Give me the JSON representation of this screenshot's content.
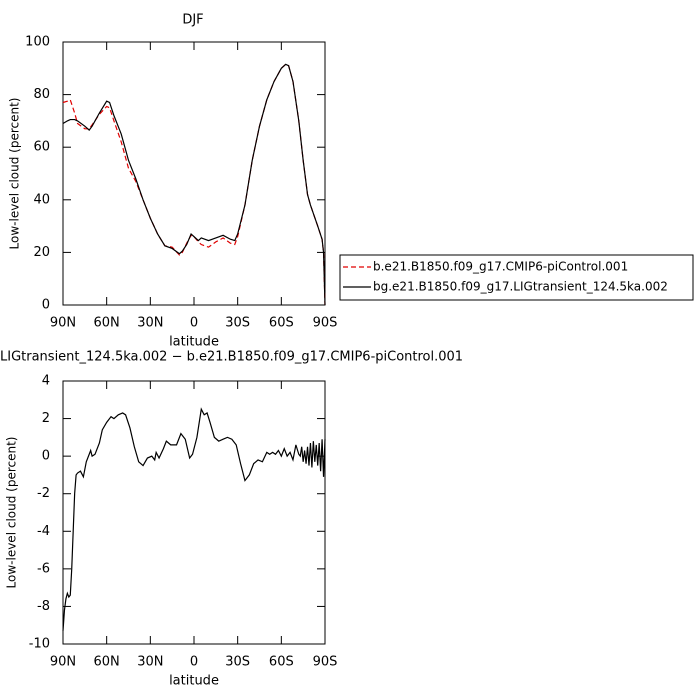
{
  "chart_data": [
    {
      "type": "line",
      "title": "DJF",
      "xlabel": "latitude",
      "ylabel": "Low-level cloud (percent)",
      "x": [
        90,
        87,
        85,
        82,
        80,
        75,
        72,
        70,
        65,
        60,
        58,
        55,
        50,
        45,
        40,
        35,
        30,
        25,
        20,
        15,
        10,
        8,
        5,
        2,
        0,
        -3,
        -5,
        -10,
        -15,
        -20,
        -25,
        -28,
        -30,
        -35,
        -40,
        -45,
        -50,
        -55,
        -60,
        -63,
        -65,
        -68,
        -72,
        -75,
        -78,
        -80,
        -85,
        -88,
        -89,
        -90
      ],
      "series": [
        {
          "name": "b.e21.B1850.f09_g17.CMIP6-piControl.001",
          "color": "#e00000",
          "dashed": true,
          "values": [
            77,
            77.5,
            78,
            73,
            69,
            67,
            67,
            68.5,
            72.5,
            75.5,
            75,
            70,
            62,
            52,
            47,
            40,
            33,
            27,
            22.5,
            22,
            19,
            20,
            23.5,
            26.5,
            26,
            24,
            23,
            22,
            24,
            25.5,
            23.5,
            23,
            26,
            38,
            55,
            68,
            78,
            85,
            90,
            91.5,
            91,
            85,
            70,
            55,
            42,
            38,
            30,
            25,
            20,
            0
          ]
        },
        {
          "name": "bg.e21.B1850.f09_g17.LIGtransient_124.5ka.002",
          "color": "#000000",
          "dashed": false,
          "values": [
            69,
            70,
            70.5,
            70.5,
            70,
            68,
            66.5,
            68,
            73,
            77.5,
            77,
            72,
            65,
            55,
            48,
            40,
            33,
            27,
            22.5,
            21.5,
            19.5,
            20.5,
            23,
            27,
            26,
            24.5,
            25.5,
            24.5,
            25.5,
            26.5,
            25,
            24.5,
            27,
            38,
            55,
            68,
            78,
            85,
            90,
            91.5,
            91,
            85,
            70,
            55,
            42,
            38,
            30,
            25,
            20,
            0
          ]
        }
      ],
      "xlim": [
        90,
        -90
      ],
      "xticks": [
        {
          "value": 90,
          "label": "90N"
        },
        {
          "value": 60,
          "label": "60N"
        },
        {
          "value": 30,
          "label": "30N"
        },
        0,
        {
          "value": -30,
          "label": "30S"
        },
        {
          "value": -60,
          "label": "60S"
        },
        {
          "value": -90,
          "label": "90S"
        }
      ],
      "ylim": [
        0,
        100
      ],
      "yticks": [
        0,
        20,
        40,
        60,
        80,
        100
      ],
      "legend": "right"
    },
    {
      "type": "line",
      "title": "LIGtransient_124.5ka.002 − b.e21.B1850.f09_g17.CMIP6-piControl.001",
      "xlabel": "latitude",
      "ylabel": "Low-level cloud (percent)",
      "x": [
        90,
        89,
        88,
        87,
        86,
        85,
        84,
        83,
        82,
        81,
        80,
        78,
        76,
        74,
        71,
        70,
        68,
        65,
        63,
        60,
        57,
        55,
        52,
        49,
        47,
        44,
        41,
        38,
        35,
        32,
        29,
        27,
        26,
        24,
        21,
        19,
        16,
        12,
        9,
        6,
        3,
        1,
        -2,
        -5,
        -7,
        -9,
        -11,
        -14,
        -17,
        -20,
        -23,
        -26,
        -29,
        -32,
        -35,
        -38,
        -41,
        -44,
        -47,
        -50,
        -52,
        -54,
        -56,
        -58,
        -60,
        -62,
        -64,
        -66,
        -68,
        -70,
        -72,
        -73,
        -74,
        -75,
        -76,
        -77,
        -78,
        -79,
        -80,
        -81,
        -82,
        -83,
        -84,
        -85,
        -86,
        -87,
        -88,
        -89,
        -90
      ],
      "series": [
        {
          "color": "#000000",
          "dashed": false,
          "values": [
            -9.3,
            -8.2,
            -7.6,
            -7.3,
            -7.5,
            -7.4,
            -6,
            -4,
            -2,
            -1,
            -0.9,
            -0.8,
            -1.1,
            -0.3,
            0.3,
            0,
            0.1,
            0.7,
            1.4,
            1.8,
            2.1,
            2.0,
            2.2,
            2.3,
            2.2,
            1.5,
            0.5,
            -0.3,
            -0.5,
            -0.1,
            0,
            -0.2,
            0.2,
            -0.1,
            0.4,
            0.8,
            0.6,
            0.6,
            1.2,
            0.9,
            -0.1,
            0.1,
            1.0,
            2.5,
            2.2,
            2.3,
            1.8,
            1.0,
            0.8,
            0.9,
            1.0,
            0.9,
            0.6,
            -0.4,
            -1.3,
            -1.0,
            -0.4,
            -0.2,
            -0.3,
            0.2,
            0.1,
            0.2,
            0.1,
            0.3,
            0.0,
            0.4,
            0.0,
            0.2,
            -0.2,
            0.6,
            0.1,
            0.0,
            0.5,
            -0.3,
            0.3,
            -0.4,
            0.5,
            -0.5,
            0.7,
            -0.6,
            0.8,
            -0.3,
            0.6,
            -0.5,
            0.7,
            -0.8,
            0.9,
            -1.1,
            0.9
          ]
        }
      ],
      "xlim": [
        90,
        -90
      ],
      "xticks": [
        {
          "value": 90,
          "label": "90N"
        },
        {
          "value": 60,
          "label": "60N"
        },
        {
          "value": 30,
          "label": "30N"
        },
        0,
        {
          "value": -30,
          "label": "30S"
        },
        {
          "value": -60,
          "label": "60S"
        },
        {
          "value": -90,
          "label": "90S"
        }
      ],
      "ylim": [
        -10,
        4
      ],
      "yticks": [
        -10,
        -8,
        -6,
        -4,
        -2,
        0,
        2,
        4
      ]
    }
  ]
}
